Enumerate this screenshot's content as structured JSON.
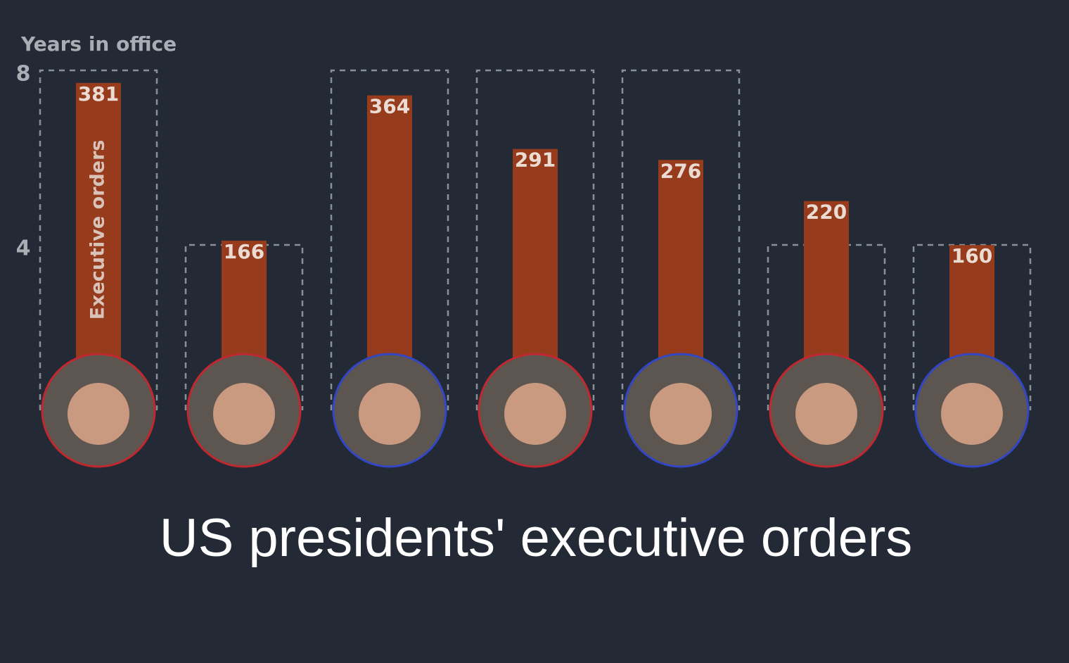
{
  "chart_data": {
    "type": "bar",
    "title": "US presidents' executive orders",
    "categories": [
      null,
      null,
      null,
      null,
      null,
      null,
      null
    ],
    "ylim": [
      0,
      8
    ],
    "yticks": [
      4,
      8
    ],
    "y2lim": [
      0,
      400
    ],
    "series": [
      {
        "name": "Years in office",
        "color": "#8a8f98",
        "values": [
          8,
          4,
          8,
          8,
          8,
          4,
          4
        ]
      },
      {
        "name": "Executive orders",
        "color": "#973b1d",
        "axis": "y2",
        "values": [
          381,
          166,
          364,
          291,
          276,
          220,
          160
        ]
      }
    ],
    "outline_colors": [
      "#c0282f",
      "#c0282f",
      "#3346c4",
      "#c0282f",
      "#3346c4",
      "#c0282f",
      "#3346c4"
    ]
  }
}
